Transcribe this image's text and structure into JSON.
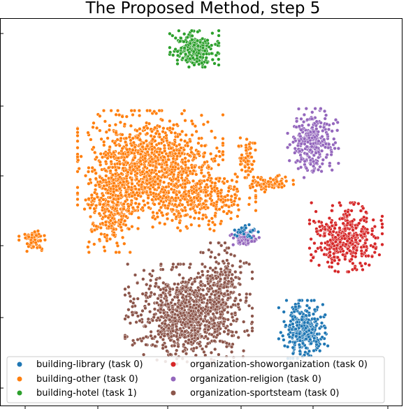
{
  "chart_data": {
    "type": "scatter",
    "title": "The Proposed Method, step 5",
    "xlabel": "",
    "ylabel": "",
    "grid": false,
    "legend_placement": "bottom",
    "colors": {
      "building-library": "#1f77b4",
      "building-other": "#ff7f0e",
      "building-hotel": "#2ca02c",
      "organization-showorganization": "#d62728",
      "organization-religion": "#9467bd",
      "organization-sportsteam": "#8c564b"
    },
    "legend": [
      {
        "key": "building-library",
        "label": "building-library (task 0)"
      },
      {
        "key": "building-other",
        "label": "building-other (task 0)"
      },
      {
        "key": "building-hotel",
        "label": "building-hotel (task 1)"
      },
      {
        "key": "organization-showorganization",
        "label": "organization-showorganization (task 0)"
      },
      {
        "key": "organization-religion",
        "label": "organization-religion (task 0)"
      },
      {
        "key": "organization-sportsteam",
        "label": "organization-sportsteam (task 0)"
      }
    ],
    "series": [
      {
        "name": "building-library (task 0)",
        "key": "building-library",
        "clusters": [
          {
            "cx": 434,
            "cy": 472,
            "rx": 27,
            "ry": 32,
            "n": 330
          },
          {
            "cx": 353,
            "cy": 332,
            "rx": 18,
            "ry": 9,
            "n": 30
          }
        ]
      },
      {
        "name": "building-other (task 0)",
        "key": "building-other",
        "clusters": [
          {
            "cx": 215,
            "cy": 230,
            "rx": 80,
            "ry": 55,
            "n": 900
          },
          {
            "cx": 160,
            "cy": 290,
            "rx": 30,
            "ry": 55,
            "n": 380
          },
          {
            "cx": 275,
            "cy": 285,
            "rx": 70,
            "ry": 35,
            "n": 420
          },
          {
            "cx": 355,
            "cy": 222,
            "rx": 12,
            "ry": 25,
            "n": 60
          },
          {
            "cx": 385,
            "cy": 262,
            "rx": 28,
            "ry": 10,
            "n": 90
          },
          {
            "cx": 48,
            "cy": 346,
            "rx": 16,
            "ry": 12,
            "n": 70
          }
        ]
      },
      {
        "name": "building-hotel (task 1)",
        "key": "building-hotel",
        "clusters": [
          {
            "cx": 278,
            "cy": 70,
            "rx": 27,
            "ry": 20,
            "n": 260
          }
        ]
      },
      {
        "name": "organization-showorganization (task 0)",
        "key": "organization-showorganization",
        "clusters": [
          {
            "cx": 495,
            "cy": 340,
            "rx": 40,
            "ry": 38,
            "n": 380
          }
        ]
      },
      {
        "name": "organization-religion (task 0)",
        "key": "organization-religion",
        "clusters": [
          {
            "cx": 448,
            "cy": 205,
            "rx": 28,
            "ry": 38,
            "n": 280
          },
          {
            "cx": 350,
            "cy": 342,
            "rx": 16,
            "ry": 10,
            "n": 70
          }
        ]
      },
      {
        "name": "organization-sportsteam (task 0)",
        "key": "organization-sportsteam",
        "clusters": [
          {
            "cx": 270,
            "cy": 450,
            "rx": 70,
            "ry": 55,
            "n": 950
          },
          {
            "cx": 320,
            "cy": 400,
            "rx": 25,
            "ry": 40,
            "n": 150
          }
        ]
      }
    ]
  }
}
